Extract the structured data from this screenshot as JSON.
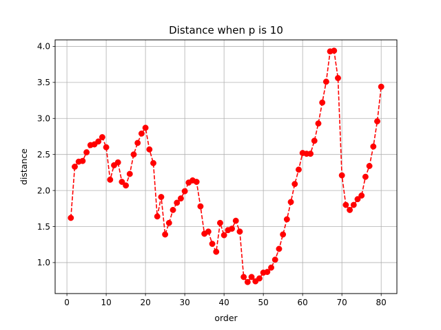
{
  "chart_data": {
    "type": "line",
    "title": "Distance when p is 10",
    "xlabel": "order",
    "ylabel": "distance",
    "xlim": [
      -3,
      84
    ],
    "ylim": [
      0.57,
      4.09
    ],
    "xticks": [
      0,
      10,
      20,
      30,
      40,
      50,
      60,
      70,
      80
    ],
    "yticks": [
      1.0,
      1.5,
      2.0,
      2.5,
      3.0,
      3.5,
      4.0
    ],
    "xtick_labels": [
      "0",
      "10",
      "20",
      "30",
      "40",
      "50",
      "60",
      "70",
      "80"
    ],
    "ytick_labels": [
      "1.0",
      "1.5",
      "2.0",
      "2.5",
      "3.0",
      "3.5",
      "4.0"
    ],
    "grid": true,
    "color": "#ff0000",
    "line_style": "dashed",
    "marker": "circle",
    "x": [
      1,
      2,
      3,
      4,
      5,
      6,
      7,
      8,
      9,
      10,
      11,
      12,
      13,
      14,
      15,
      16,
      17,
      18,
      19,
      20,
      21,
      22,
      23,
      24,
      25,
      26,
      27,
      28,
      29,
      30,
      31,
      32,
      33,
      34,
      35,
      36,
      37,
      38,
      39,
      40,
      41,
      42,
      43,
      44,
      45,
      46,
      47,
      48,
      49,
      50,
      51,
      52,
      53,
      54,
      55,
      56,
      57,
      58,
      59,
      60,
      61,
      62,
      63,
      64,
      65,
      66,
      67,
      68,
      69,
      70,
      71,
      72,
      73,
      74,
      75,
      76,
      77,
      78,
      79,
      80
    ],
    "y": [
      1.62,
      2.33,
      2.4,
      2.41,
      2.53,
      2.63,
      2.64,
      2.68,
      2.74,
      2.6,
      2.15,
      2.35,
      2.39,
      2.12,
      2.07,
      2.23,
      2.5,
      2.66,
      2.79,
      2.87,
      2.57,
      2.38,
      1.64,
      1.91,
      1.39,
      1.55,
      1.73,
      1.83,
      1.89,
      1.99,
      2.11,
      2.14,
      2.12,
      1.78,
      1.4,
      1.43,
      1.26,
      1.15,
      1.55,
      1.38,
      1.45,
      1.47,
      1.58,
      1.43,
      0.8,
      0.73,
      0.8,
      0.74,
      0.78,
      0.86,
      0.87,
      0.93,
      1.04,
      1.19,
      1.39,
      1.6,
      1.84,
      2.09,
      2.29,
      2.52,
      2.51,
      2.51,
      2.69,
      2.93,
      3.22,
      3.51,
      3.93,
      3.94,
      3.56,
      2.21,
      1.8,
      1.73,
      1.8,
      1.88,
      1.93,
      2.19,
      2.34,
      2.61,
      2.96,
      3.44
    ]
  }
}
